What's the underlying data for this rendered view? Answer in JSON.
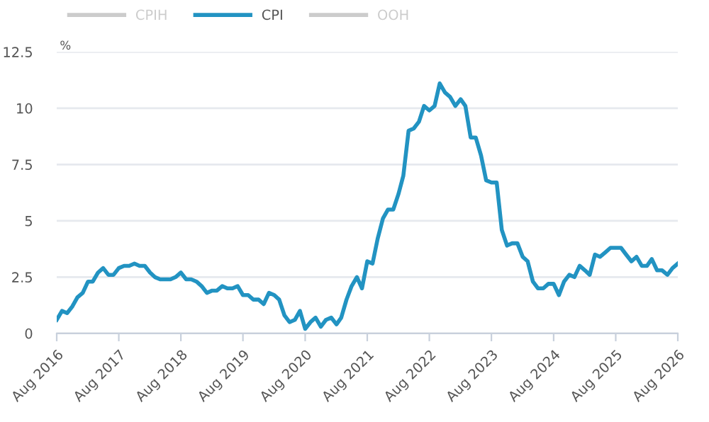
{
  "chart_data": {
    "type": "line",
    "ylabel": "%",
    "x": [
      "2016-08",
      "2016-09",
      "2016-10",
      "2016-11",
      "2016-12",
      "2017-01",
      "2017-02",
      "2017-03",
      "2017-04",
      "2017-05",
      "2017-06",
      "2017-07",
      "2017-08",
      "2017-09",
      "2017-10",
      "2017-11",
      "2017-12",
      "2018-01",
      "2018-02",
      "2018-03",
      "2018-04",
      "2018-05",
      "2018-06",
      "2018-07",
      "2018-08",
      "2018-09",
      "2018-10",
      "2018-11",
      "2018-12",
      "2019-01",
      "2019-02",
      "2019-03",
      "2019-04",
      "2019-05",
      "2019-06",
      "2019-07",
      "2019-08",
      "2019-09",
      "2019-10",
      "2019-11",
      "2019-12",
      "2020-01",
      "2020-02",
      "2020-03",
      "2020-04",
      "2020-05",
      "2020-06",
      "2020-07",
      "2020-08",
      "2020-09",
      "2020-10",
      "2020-11",
      "2020-12",
      "2021-01",
      "2021-02",
      "2021-03",
      "2021-04",
      "2021-05",
      "2021-06",
      "2021-07",
      "2021-08",
      "2021-09",
      "2021-10",
      "2021-11",
      "2021-12",
      "2022-01",
      "2022-02",
      "2022-03",
      "2022-04",
      "2022-05",
      "2022-06",
      "2022-07",
      "2022-08",
      "2022-09",
      "2022-10",
      "2022-11",
      "2022-12",
      "2023-01",
      "2023-02",
      "2023-03",
      "2023-04",
      "2023-05",
      "2023-06",
      "2023-07",
      "2023-08",
      "2023-09",
      "2023-10",
      "2023-11",
      "2023-12",
      "2024-01",
      "2024-02",
      "2024-03",
      "2024-04",
      "2024-05",
      "2024-06",
      "2024-07",
      "2024-08",
      "2024-09",
      "2024-10",
      "2024-11",
      "2024-12",
      "2025-01",
      "2025-02",
      "2025-03",
      "2025-04",
      "2025-05",
      "2025-06",
      "2025-07",
      "2025-08",
      "2025-09",
      "2025-10",
      "2025-11",
      "2025-12",
      "2026-01",
      "2026-02",
      "2026-03",
      "2026-04",
      "2026-05",
      "2026-06",
      "2026-07",
      "2026-08"
    ],
    "series": [
      {
        "name": "CPIH",
        "color": "#cccccc",
        "values": [
          null,
          null,
          null,
          null,
          null,
          null,
          null,
          null,
          null,
          null,
          null,
          null,
          null,
          null,
          null,
          null,
          null,
          null,
          null,
          null,
          null,
          null,
          null,
          null,
          null,
          null,
          null,
          null,
          null,
          null,
          null,
          null,
          null,
          null,
          null,
          null,
          null,
          null,
          null,
          null,
          null,
          null,
          null,
          null,
          null,
          null,
          null,
          null,
          null,
          null,
          null,
          null,
          null,
          null,
          null,
          null,
          null,
          null,
          null,
          null,
          null,
          null,
          null,
          null,
          null,
          null,
          null,
          null,
          null,
          null,
          null,
          null,
          null,
          null,
          null,
          null,
          null,
          null,
          null,
          null,
          null,
          null,
          null,
          null,
          null,
          null,
          null,
          null,
          null,
          null,
          null,
          null,
          null,
          null,
          null,
          null,
          null,
          null,
          null,
          null,
          null,
          null,
          null,
          null,
          null,
          null,
          null,
          null,
          null,
          null,
          null,
          null,
          null,
          null,
          null,
          null,
          null,
          null,
          null,
          null,
          null
        ]
      },
      {
        "name": "CPI",
        "color": "#2293c2",
        "values": [
          0.6,
          1.0,
          0.9,
          1.2,
          1.6,
          1.8,
          2.3,
          2.3,
          2.7,
          2.9,
          2.6,
          2.6,
          2.9,
          3.0,
          3.0,
          3.1,
          3.0,
          3.0,
          2.7,
          2.5,
          2.4,
          2.4,
          2.4,
          2.5,
          2.7,
          2.4,
          2.4,
          2.3,
          2.1,
          1.8,
          1.9,
          1.9,
          2.1,
          2.0,
          2.0,
          2.1,
          1.7,
          1.7,
          1.5,
          1.5,
          1.3,
          1.8,
          1.7,
          1.5,
          0.8,
          0.5,
          0.6,
          1.0,
          0.2,
          0.5,
          0.7,
          0.3,
          0.6,
          0.7,
          0.4,
          0.7,
          1.5,
          2.1,
          2.5,
          2.0,
          3.2,
          3.1,
          4.2,
          5.1,
          5.5,
          5.5,
          6.2,
          7.0,
          9.0,
          9.1,
          9.4,
          10.1,
          9.9,
          10.1,
          11.1,
          10.7,
          10.5,
          10.1,
          10.4,
          10.1,
          8.7,
          8.7,
          7.9,
          6.8,
          6.7,
          6.7,
          4.6,
          3.9,
          4.0,
          4.0,
          3.4,
          3.2,
          2.3,
          2.0,
          2.0,
          2.2,
          2.2,
          1.7,
          2.3,
          2.6,
          2.5,
          3.0,
          2.8,
          2.6,
          3.5,
          3.4,
          3.6,
          3.8,
          3.8,
          3.8,
          3.5,
          3.2,
          3.4,
          3.0,
          3.0,
          3.3,
          2.8,
          2.8,
          2.6,
          2.9,
          3.1
        ]
      },
      {
        "name": "OOH",
        "color": "#cccccc",
        "values": [
          null,
          null,
          null,
          null,
          null,
          null,
          null,
          null,
          null,
          null,
          null,
          null,
          null,
          null,
          null,
          null,
          null,
          null,
          null,
          null,
          null,
          null,
          null,
          null,
          null,
          null,
          null,
          null,
          null,
          null,
          null,
          null,
          null,
          null,
          null,
          null,
          null,
          null,
          null,
          null,
          null,
          null,
          null,
          null,
          null,
          null,
          null,
          null,
          null,
          null,
          null,
          null,
          null,
          null,
          null,
          null,
          null,
          null,
          null,
          null,
          null,
          null,
          null,
          null,
          null,
          null,
          null,
          null,
          null,
          null,
          null,
          null,
          null,
          null,
          null,
          null,
          null,
          null,
          null,
          null,
          null,
          null,
          null,
          null,
          null,
          null,
          null,
          null,
          null,
          null,
          null,
          null,
          null,
          null,
          null,
          null,
          null,
          null,
          null,
          null,
          null,
          null,
          null,
          null,
          null,
          null,
          null,
          null,
          null,
          null,
          null,
          null,
          null,
          null,
          null,
          null,
          null,
          null,
          null,
          null,
          null
        ]
      }
    ],
    "xlim": [
      "2016-08",
      "2026-08"
    ],
    "xticks": [
      {
        "value": "2016-08",
        "label": "Aug 2016"
      },
      {
        "value": "2017-08",
        "label": "Aug 2017"
      },
      {
        "value": "2018-08",
        "label": "Aug 2018"
      },
      {
        "value": "2019-08",
        "label": "Aug 2019"
      },
      {
        "value": "2020-08",
        "label": "Aug 2020"
      },
      {
        "value": "2021-08",
        "label": "Aug 2021"
      },
      {
        "value": "2022-08",
        "label": "Aug 2022"
      },
      {
        "value": "2023-08",
        "label": "Aug 2023"
      },
      {
        "value": "2024-08",
        "label": "Aug 2024"
      },
      {
        "value": "2025-08",
        "label": "Aug 2025"
      },
      {
        "value": "2026-08",
        "label": "Aug 2026"
      }
    ],
    "ylim": [
      0,
      12.5
    ],
    "yticks": [
      0,
      2.5,
      5,
      7.5,
      10,
      12.5
    ],
    "grid": "y",
    "legend": "top",
    "line_style": "solid",
    "marker": "none"
  }
}
